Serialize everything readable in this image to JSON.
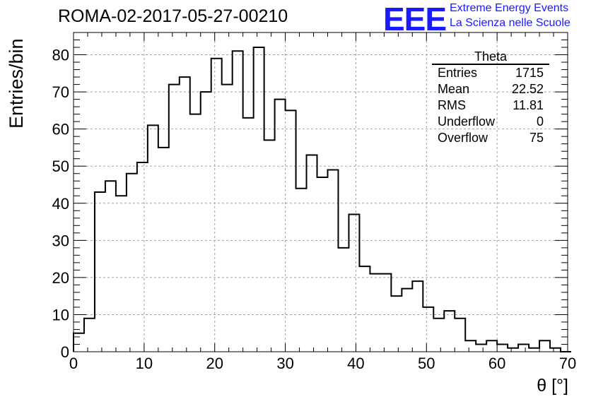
{
  "header": {
    "title": "ROMA-02-2017-05-27-00210"
  },
  "logo": {
    "mark": "EEE",
    "line1": "Extreme Energy Events",
    "line2": "La Scienza nelle Scuole",
    "color": "#1a1aff"
  },
  "stats": {
    "name": "Theta",
    "rows": [
      {
        "label": "Entries",
        "value": "1715"
      },
      {
        "label": "Mean",
        "value": "22.52"
      },
      {
        "label": "RMS",
        "value": "11.81"
      },
      {
        "label": "Underflow",
        "value": "0"
      },
      {
        "label": "Overflow",
        "value": "75"
      }
    ]
  },
  "chart_data": {
    "type": "bar",
    "style": "step-histogram",
    "xlabel": "θ [°]",
    "ylabel": "Entries/bin",
    "xlim": [
      0,
      70
    ],
    "ylim": [
      0,
      86
    ],
    "grid": true,
    "bin_width": 1.5,
    "bin_start": 0,
    "x_ticks": [
      0,
      10,
      20,
      30,
      40,
      50,
      60,
      70
    ],
    "y_ticks": [
      0,
      10,
      20,
      30,
      40,
      50,
      60,
      70,
      80
    ],
    "values": [
      5,
      9,
      43,
      46,
      42,
      48,
      51,
      61,
      55,
      72,
      74,
      64,
      70,
      79,
      72,
      81,
      63,
      82,
      57,
      68,
      65,
      44,
      53,
      47,
      49,
      28,
      37,
      23,
      21,
      21,
      15,
      17,
      19,
      12,
      9,
      11,
      9,
      3,
      2,
      3,
      2,
      1,
      2,
      1,
      3,
      1,
      0
    ]
  }
}
